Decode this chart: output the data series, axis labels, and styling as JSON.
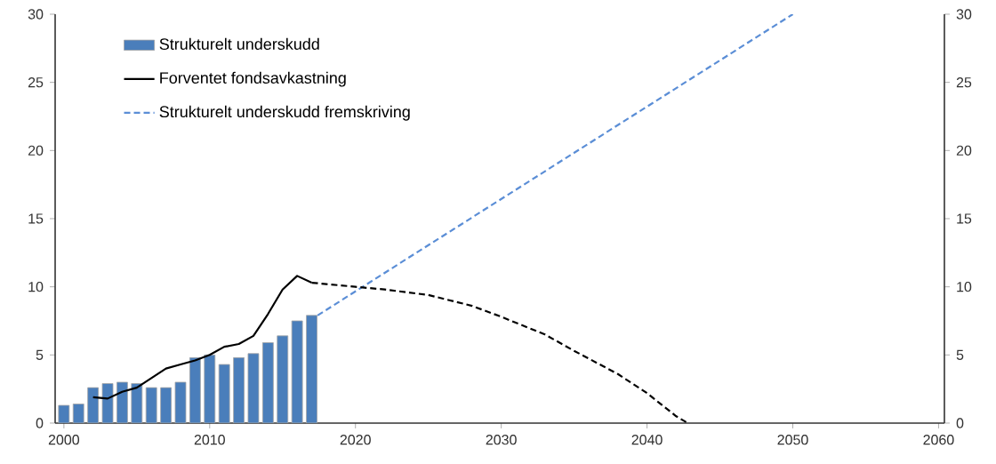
{
  "chart_data": {
    "type": "bar",
    "x": [
      2000,
      2001,
      2002,
      2003,
      2004,
      2005,
      2006,
      2007,
      2008,
      2009,
      2010,
      2011,
      2012,
      2013,
      2014,
      2015,
      2016,
      2017
    ],
    "series": [
      {
        "name": "Strukturelt underskudd",
        "color": "#4a7ebb",
        "values": [
          1.3,
          1.4,
          2.6,
          2.9,
          3.0,
          2.9,
          2.6,
          2.6,
          3.0,
          4.8,
          5.0,
          4.3,
          4.8,
          5.1,
          5.9,
          6.4,
          7.5,
          7.9
        ]
      },
      {
        "name": "Forventet fondsavkastning",
        "type": "line",
        "color": "#000000",
        "line_style": "solid",
        "x": [
          2002,
          2003,
          2004,
          2005,
          2006,
          2007,
          2008,
          2009,
          2010,
          2011,
          2012,
          2013,
          2014,
          2015,
          2016,
          2017
        ],
        "values": [
          1.9,
          1.8,
          2.3,
          2.6,
          3.3,
          4.0,
          4.3,
          4.6,
          5.0,
          5.6,
          5.8,
          6.4,
          8.0,
          9.8,
          10.8,
          10.3
        ]
      },
      {
        "name": "Strukturelt underskudd fremskriving",
        "type": "line",
        "color": "#5b8ed6",
        "line_style": "dashed",
        "x": [
          2017.4,
          2050
        ],
        "values": [
          7.9,
          30
        ]
      },
      {
        "type": "line",
        "color": "#000000",
        "line_style": "dashed",
        "x": [
          2017,
          2018,
          2020,
          2022,
          2025,
          2028,
          2030,
          2033,
          2035,
          2038,
          2040,
          2042,
          2042.8
        ],
        "values": [
          10.3,
          10.2,
          10.0,
          9.8,
          9.4,
          8.6,
          7.8,
          6.5,
          5.3,
          3.6,
          2.2,
          0.5,
          0
        ]
      }
    ],
    "xlim": [
      1999.4,
      2060.4
    ],
    "xticks": [
      2000,
      2010,
      2020,
      2030,
      2040,
      2050,
      2060
    ],
    "ylim": [
      0,
      30
    ],
    "yticks": [
      0,
      5,
      10,
      15,
      20,
      25,
      30
    ],
    "y2lim": [
      0,
      30
    ],
    "y2ticks": [
      0,
      5,
      10,
      15,
      20,
      25,
      30
    ],
    "legend": "top left"
  }
}
